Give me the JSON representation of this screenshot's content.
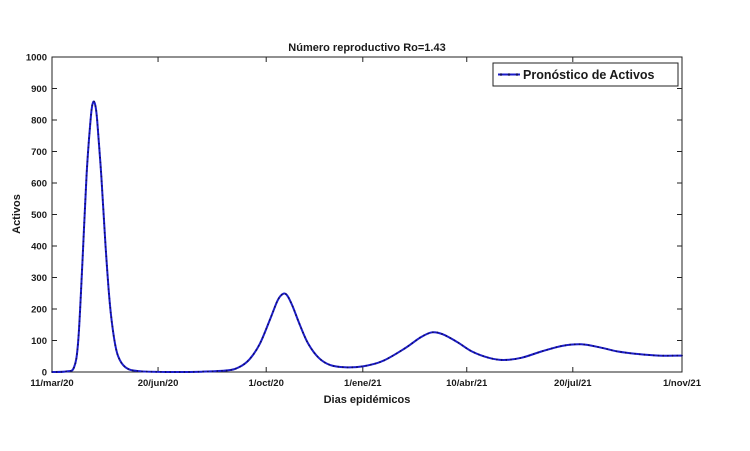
{
  "colors": {
    "series": "#1c1ccc",
    "axis": "#222222",
    "background": "#ffffff"
  },
  "chart_data": {
    "type": "line",
    "title": "Número reproductivo Ro=1.43",
    "xlabel": "Dias epidémicos",
    "ylabel": "Activos",
    "ylim": [
      0,
      1000
    ],
    "yticks": [
      0,
      100,
      200,
      300,
      400,
      500,
      600,
      700,
      800,
      900,
      1000
    ],
    "xlim": [
      "2020-03-11",
      "2021-11-01"
    ],
    "xticks": [
      {
        "date": "2020-03-11",
        "label": "11/mar/20"
      },
      {
        "date": "2020-06-20",
        "label": "20/jun/20"
      },
      {
        "date": "2020-10-01",
        "label": "1/oct/20"
      },
      {
        "date": "2021-01-01",
        "label": "1/ene/21"
      },
      {
        "date": "2021-04-10",
        "label": "10/abr/21"
      },
      {
        "date": "2021-07-20",
        "label": "20/jul/21"
      },
      {
        "date": "2021-11-01",
        "label": "1/nov/21"
      }
    ],
    "grid": false,
    "legend": {
      "position": "top-right",
      "entries": [
        "Pronóstico de Activos"
      ]
    },
    "series": [
      {
        "name": "Pronóstico de Activos",
        "points": [
          [
            "2020-03-11",
            0
          ],
          [
            "2020-03-25",
            2
          ],
          [
            "2020-04-01",
            15
          ],
          [
            "2020-04-05",
            100
          ],
          [
            "2020-04-09",
            350
          ],
          [
            "2020-04-13",
            630
          ],
          [
            "2020-04-17",
            810
          ],
          [
            "2020-04-19",
            855
          ],
          [
            "2020-04-21",
            850
          ],
          [
            "2020-04-23",
            800
          ],
          [
            "2020-04-27",
            620
          ],
          [
            "2020-05-01",
            400
          ],
          [
            "2020-05-05",
            220
          ],
          [
            "2020-05-09",
            110
          ],
          [
            "2020-05-13",
            50
          ],
          [
            "2020-05-20",
            15
          ],
          [
            "2020-06-01",
            3
          ],
          [
            "2020-07-01",
            0
          ],
          [
            "2020-08-01",
            1
          ],
          [
            "2020-08-25",
            5
          ],
          [
            "2020-09-05",
            15
          ],
          [
            "2020-09-15",
            40
          ],
          [
            "2020-09-25",
            90
          ],
          [
            "2020-10-05",
            170
          ],
          [
            "2020-10-12",
            228
          ],
          [
            "2020-10-17",
            248
          ],
          [
            "2020-10-21",
            243
          ],
          [
            "2020-10-26",
            210
          ],
          [
            "2020-11-02",
            150
          ],
          [
            "2020-11-10",
            90
          ],
          [
            "2020-11-20",
            45
          ],
          [
            "2020-12-01",
            22
          ],
          [
            "2020-12-15",
            15
          ],
          [
            "2021-01-01",
            18
          ],
          [
            "2021-01-20",
            35
          ],
          [
            "2021-02-10",
            75
          ],
          [
            "2021-02-25",
            110
          ],
          [
            "2021-03-08",
            126
          ],
          [
            "2021-03-18",
            120
          ],
          [
            "2021-04-01",
            95
          ],
          [
            "2021-04-15",
            65
          ],
          [
            "2021-05-01",
            45
          ],
          [
            "2021-05-15",
            38
          ],
          [
            "2021-06-01",
            45
          ],
          [
            "2021-06-20",
            65
          ],
          [
            "2021-07-10",
            83
          ],
          [
            "2021-07-28",
            88
          ],
          [
            "2021-08-15",
            78
          ],
          [
            "2021-09-01",
            65
          ],
          [
            "2021-09-20",
            57
          ],
          [
            "2021-10-10",
            52
          ],
          [
            "2021-11-01",
            52
          ]
        ]
      }
    ]
  }
}
